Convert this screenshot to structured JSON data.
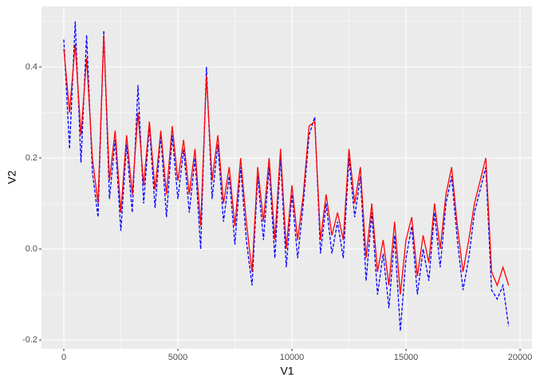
{
  "chart_data": {
    "type": "line",
    "xlabel": "V1",
    "ylabel": "V2",
    "x": [
      0,
      250,
      500,
      750,
      1000,
      1250,
      1500,
      1750,
      2000,
      2250,
      2500,
      2750,
      3000,
      3250,
      3500,
      3750,
      4000,
      4250,
      4500,
      4750,
      5000,
      5250,
      5500,
      5750,
      6000,
      6250,
      6500,
      6750,
      7000,
      7250,
      7500,
      7750,
      8000,
      8250,
      8500,
      8750,
      9000,
      9250,
      9500,
      9750,
      10000,
      10250,
      10500,
      10750,
      11000,
      11250,
      11500,
      11750,
      12000,
      12250,
      12500,
      12750,
      13000,
      13250,
      13500,
      13750,
      14000,
      14250,
      14500,
      14750,
      15000,
      15250,
      15500,
      15750,
      16000,
      16250,
      16500,
      16750,
      17000,
      17250,
      17500,
      17750,
      18000,
      18250,
      18500,
      18750,
      19000,
      19250,
      19500
    ],
    "series": [
      {
        "color": "#0000ff",
        "dash": "4,2",
        "values": [
          0.46,
          0.22,
          0.5,
          0.19,
          0.47,
          0.17,
          0.07,
          0.48,
          0.11,
          0.24,
          0.04,
          0.23,
          0.08,
          0.36,
          0.1,
          0.27,
          0.09,
          0.25,
          0.07,
          0.25,
          0.11,
          0.22,
          0.08,
          0.2,
          0.0,
          0.4,
          0.11,
          0.23,
          0.06,
          0.16,
          0.01,
          0.18,
          0.02,
          -0.08,
          0.16,
          0.02,
          0.18,
          -0.02,
          0.2,
          -0.04,
          0.12,
          -0.02,
          0.1,
          0.25,
          0.29,
          -0.01,
          0.1,
          -0.01,
          0.06,
          -0.02,
          0.2,
          0.07,
          0.16,
          -0.07,
          0.08,
          -0.1,
          -0.01,
          -0.13,
          0.03,
          -0.18,
          -0.02,
          0.05,
          -0.1,
          0.0,
          -0.07,
          0.08,
          -0.04,
          0.1,
          0.16,
          0.02,
          -0.09,
          -0.02,
          0.08,
          0.13,
          0.18,
          -0.09,
          -0.11,
          -0.08,
          -0.17
        ]
      },
      {
        "color": "#ff0000",
        "dash": "none",
        "values": [
          0.44,
          0.3,
          0.45,
          0.25,
          0.42,
          0.2,
          0.1,
          0.47,
          0.15,
          0.26,
          0.08,
          0.25,
          0.12,
          0.3,
          0.14,
          0.28,
          0.13,
          0.26,
          0.12,
          0.27,
          0.15,
          0.24,
          0.12,
          0.22,
          0.05,
          0.38,
          0.15,
          0.25,
          0.1,
          0.18,
          0.05,
          0.2,
          0.06,
          -0.05,
          0.18,
          0.06,
          0.2,
          0.02,
          0.22,
          0.0,
          0.14,
          0.02,
          0.12,
          0.27,
          0.28,
          0.02,
          0.12,
          0.03,
          0.08,
          0.02,
          0.22,
          0.1,
          0.18,
          -0.02,
          0.1,
          -0.05,
          0.02,
          -0.08,
          0.06,
          -0.1,
          0.02,
          0.07,
          -0.06,
          0.03,
          -0.03,
          0.1,
          0.0,
          0.12,
          0.18,
          0.05,
          -0.05,
          0.02,
          0.1,
          0.15,
          0.2,
          -0.05,
          -0.08,
          -0.04,
          -0.08
        ]
      }
    ],
    "xlim": [
      -979,
      20524
    ],
    "xticks": [
      0,
      5000,
      10000,
      15000,
      20000
    ],
    "xminor": [
      2500,
      7500,
      12500,
      17500
    ],
    "ylim": [
      -0.219,
      0.533
    ],
    "yticks": [
      -0.2,
      {
        "value": 0,
        "label": "0.0"
      },
      0.2,
      0.4
    ],
    "yminor": [
      -0.1,
      0.1,
      0.3,
      0.5
    ],
    "grid": true
  }
}
